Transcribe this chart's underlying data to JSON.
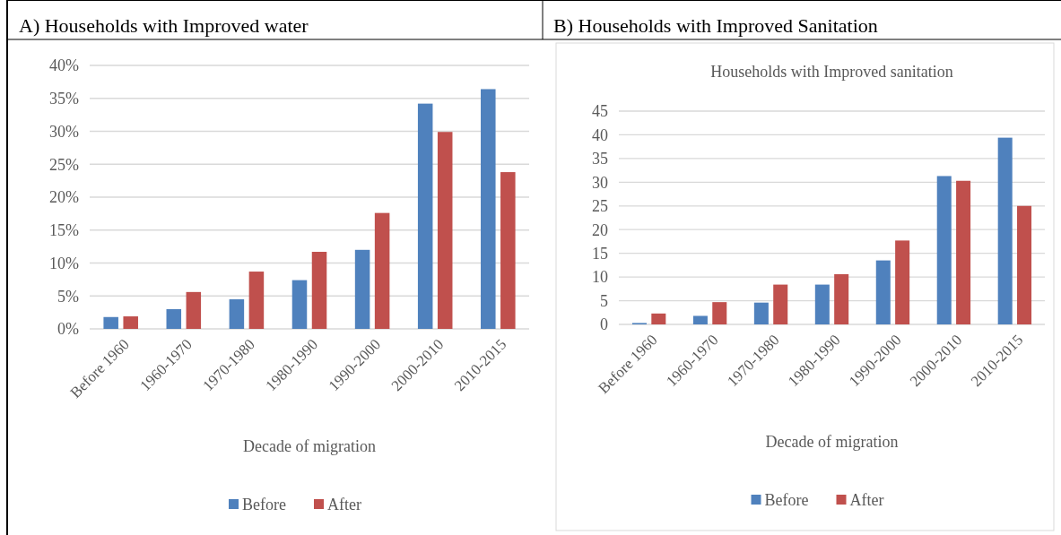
{
  "chart_data": [
    {
      "type": "bar",
      "title": "A) Households with Improved water",
      "xlabel": "Decade of migration",
      "categories": [
        "Before 1960",
        "1960-1970",
        "1970-1980",
        "1980-1990",
        "1990-2000",
        "2000-2010",
        "2010-2015"
      ],
      "series": [
        {
          "name": "Before",
          "color": "#4f81bd",
          "values": [
            1.8,
            3.0,
            4.5,
            7.4,
            12.0,
            34.2,
            36.4
          ]
        },
        {
          "name": "After",
          "color": "#c0504d",
          "values": [
            1.9,
            5.6,
            8.7,
            11.7,
            17.6,
            29.9,
            23.8
          ]
        }
      ],
      "ylim": [
        0,
        40
      ],
      "yticks": [
        {
          "value": 0,
          "label": "0%"
        },
        {
          "value": 5,
          "label": "5%"
        },
        {
          "value": 10,
          "label": "10%"
        },
        {
          "value": 15,
          "label": "15%"
        },
        {
          "value": 20,
          "label": "20%"
        },
        {
          "value": 25,
          "label": "25%"
        },
        {
          "value": 30,
          "label": "30%"
        },
        {
          "value": 35,
          "label": "35%"
        },
        {
          "value": 40,
          "label": "40%"
        }
      ],
      "grid": "y",
      "legend": "bottom"
    },
    {
      "type": "bar",
      "title": "B) Households with Improved Sanitation",
      "subtitle": "Households with Improved sanitation",
      "xlabel": "Decade of migration",
      "categories": [
        "Before 1960",
        "1960-1970",
        "1970-1980",
        "1980-1990",
        "1990-2000",
        "2000-2010",
        "2010-2015"
      ],
      "series": [
        {
          "name": "Before",
          "color": "#4f81bd",
          "values": [
            0.3,
            1.8,
            4.6,
            8.4,
            13.5,
            31.3,
            39.4
          ]
        },
        {
          "name": "After",
          "color": "#c0504d",
          "values": [
            2.3,
            4.7,
            8.4,
            10.6,
            17.7,
            30.3,
            25.0
          ]
        }
      ],
      "ylim": [
        0,
        45
      ],
      "yticks": [
        0,
        5,
        10,
        15,
        20,
        25,
        30,
        35,
        40,
        45
      ],
      "grid": "y",
      "legend": "bottom"
    }
  ]
}
